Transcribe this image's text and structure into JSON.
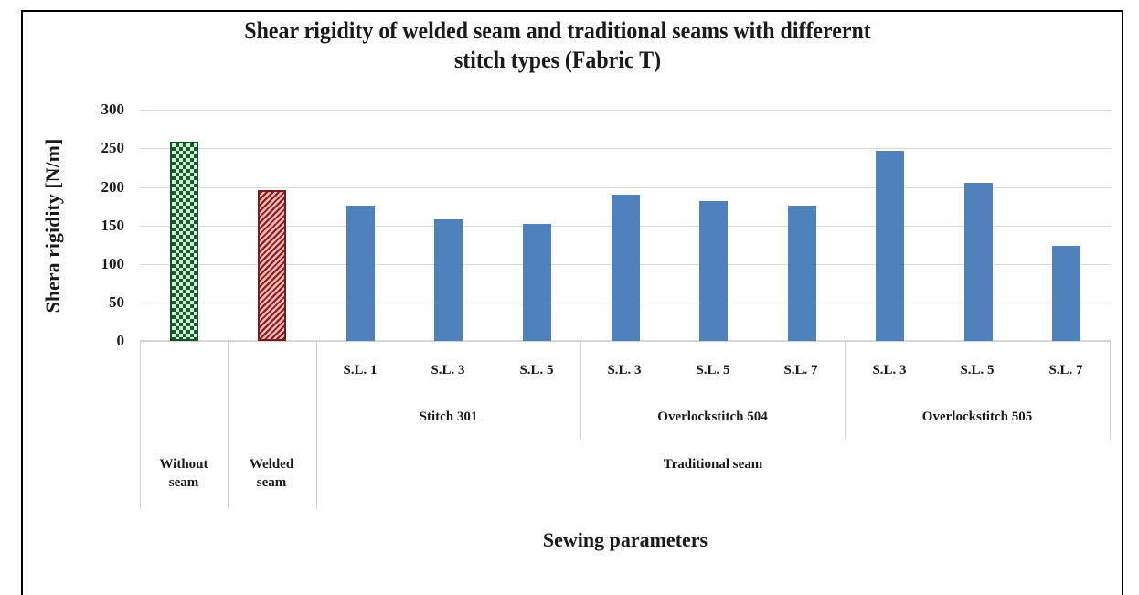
{
  "chart_data": {
    "type": "bar",
    "title": "Shear rigidity of welded seam and traditional seams with differernt stitch types (Fabric T)",
    "title_lines": [
      "Shear rigidity of welded  seam and traditional seams with differernt",
      "stitch types (Fabric T)"
    ],
    "xlabel": "Sewing parameters",
    "ylabel": "Shera rigidity [N/m]",
    "ylim": [
      0,
      300
    ],
    "yticks": [
      0,
      50,
      100,
      150,
      200,
      250,
      300
    ],
    "grid": true,
    "legend": null,
    "categories": [
      "Without seam",
      "Welded seam",
      "Traditional seam / Stitch 301 / S.L. 1",
      "Traditional seam / Stitch 301 / S.L. 3",
      "Traditional seam / Stitch 301 / S.L. 5",
      "Traditional seam / Overlock stitch 504 / S.L. 3",
      "Traditional seam / Overlock stitch 504 / S.L. 5",
      "Traditional seam / Overlock stitch 504 / S.L. 7",
      "Traditional seam / Overlock stitch 505 / S.L. 3",
      "Traditional seam / Overlock stitch 505 / S.L. 5",
      "Traditional seam / Overlock stitch 505 / S.L. 7"
    ],
    "values": [
      258,
      196,
      175,
      158,
      152,
      190,
      182,
      175,
      247,
      205,
      123
    ],
    "bar_styles": [
      "checker-green",
      "hatch-red",
      "solid-blue",
      "solid-blue",
      "solid-blue",
      "solid-blue",
      "solid-blue",
      "solid-blue",
      "solid-blue",
      "solid-blue",
      "solid-blue"
    ],
    "colors": {
      "blue": "#4f81bd",
      "green_dark": "#1e5631",
      "green_light": "#c9f2cf",
      "red_dark": "#8b1a1a",
      "red_light": "#f5b7b7"
    },
    "axis_levels": {
      "level1": [
        "S.L. 1",
        "S.L. 3",
        "S.L. 5",
        "S.L. 3",
        "S.L. 5",
        "S.L. 7",
        "S.L. 3",
        "S.L. 5",
        "S.L. 7"
      ],
      "level2": [
        "Stitch 301",
        "Overlock stitch 504",
        "Overlock stitch 505"
      ],
      "level3": [
        "Without seam",
        "Welded seam",
        "Traditional seam"
      ]
    }
  },
  "labels": {
    "title1": "Shear rigidity of welded  seam and traditional seams with differernt",
    "title2": "stitch types (Fabric T)",
    "ylabel": "Shera rigidity [N/m]",
    "xlabel": "Sewing parameters",
    "ticks": [
      "300",
      "250",
      "200",
      "150",
      "100",
      "50",
      "0"
    ],
    "sl": [
      "S.L. 1",
      "S.L. 3",
      "S.L. 5",
      "S.L. 3",
      "S.L. 5",
      "S.L. 7",
      "S.L. 3",
      "S.L. 5",
      "S.L. 7"
    ],
    "groups": [
      "Stitch 301",
      "Overlockstitch 504",
      "Overlockstitch 505"
    ],
    "cat_without_1": "Without",
    "cat_without_2": "seam",
    "cat_welded_1": "Welded",
    "cat_welded_2": "seam",
    "traditional": "Traditional seam"
  }
}
